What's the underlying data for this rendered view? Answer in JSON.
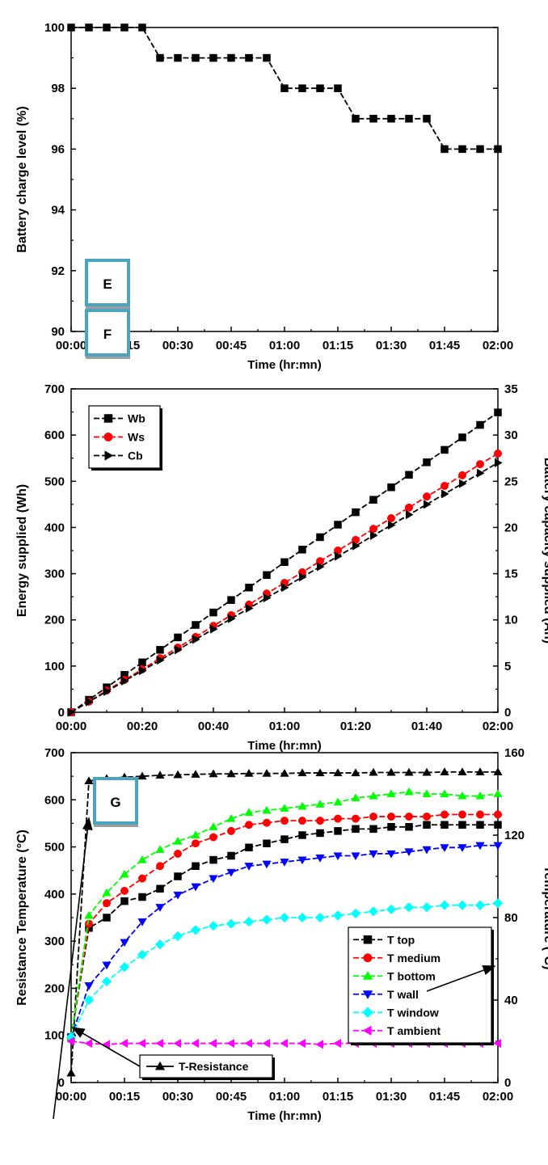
{
  "chart_data": [
    {
      "type": "line",
      "panel_label": "E",
      "xlabel": "Time (hr:mn)",
      "ylabel": "Battery charge level (%)",
      "xlim": [
        0,
        120
      ],
      "ylim": [
        90,
        100
      ],
      "xticks": [
        0,
        15,
        30,
        45,
        60,
        75,
        90,
        105,
        120
      ],
      "xtick_labels": [
        "00:00",
        "00:15",
        "00:30",
        "00:45",
        "01:00",
        "01:15",
        "01:30",
        "01:45",
        "02:00"
      ],
      "yticks": [
        90,
        92,
        94,
        96,
        98,
        100
      ],
      "series": [
        {
          "color": "#000000",
          "marker": "square",
          "x": [
            0,
            5,
            10,
            15,
            20,
            25,
            30,
            35,
            40,
            45,
            50,
            55,
            60,
            65,
            70,
            75,
            80,
            85,
            90,
            95,
            100,
            105,
            110,
            115,
            120
          ],
          "y": [
            100,
            100,
            100,
            100,
            100,
            99,
            99,
            99,
            99,
            99,
            99,
            99,
            98,
            98,
            98,
            98,
            97,
            97,
            97,
            97,
            97,
            96,
            96,
            96,
            96
          ]
        }
      ]
    },
    {
      "type": "line",
      "panel_label": "F",
      "xlabel": "Time (hr:mn)",
      "ylabel": "Energy supplied (Wh)",
      "y2label": "Battery capacity supplied (Ah)",
      "xlim": [
        0,
        120
      ],
      "ylim": [
        0,
        700
      ],
      "y2lim": [
        0,
        35
      ],
      "xticks": [
        0,
        20,
        40,
        60,
        80,
        100,
        120
      ],
      "xtick_labels": [
        "00:00",
        "00:20",
        "00:40",
        "01:00",
        "01:20",
        "01:40",
        "02:00"
      ],
      "yticks": [
        0,
        100,
        200,
        300,
        400,
        500,
        600,
        700
      ],
      "y2ticks": [
        0,
        5,
        10,
        15,
        20,
        25,
        30,
        35
      ],
      "legend_position": "top-left",
      "series": [
        {
          "name": "Wb",
          "color": "#000000",
          "marker": "square",
          "axis": "left",
          "x": [
            0,
            5,
            10,
            15,
            20,
            25,
            30,
            35,
            40,
            45,
            50,
            55,
            60,
            65,
            70,
            75,
            80,
            85,
            90,
            95,
            100,
            105,
            110,
            115,
            120
          ],
          "y": [
            0,
            27,
            54,
            81,
            108,
            135,
            162,
            189,
            216,
            243,
            270,
            297,
            325,
            352,
            379,
            406,
            433,
            460,
            487,
            514,
            541,
            568,
            595,
            622,
            649
          ]
        },
        {
          "name": "Ws",
          "color": "#ff0000",
          "marker": "circle",
          "axis": "left",
          "x": [
            0,
            5,
            10,
            15,
            20,
            25,
            30,
            35,
            40,
            45,
            50,
            55,
            60,
            65,
            70,
            75,
            80,
            85,
            90,
            95,
            100,
            105,
            110,
            115,
            120
          ],
          "y": [
            0,
            23,
            47,
            70,
            93,
            117,
            140,
            163,
            187,
            210,
            233,
            257,
            280,
            303,
            327,
            350,
            373,
            397,
            420,
            443,
            467,
            490,
            513,
            537,
            560
          ]
        },
        {
          "name": "Cb",
          "color": "#000000",
          "marker": "triangle-right",
          "axis": "right",
          "x": [
            0,
            5,
            10,
            15,
            20,
            25,
            30,
            35,
            40,
            45,
            50,
            55,
            60,
            65,
            70,
            75,
            80,
            85,
            90,
            95,
            100,
            105,
            110,
            115,
            120
          ],
          "y": [
            0,
            1.13,
            2.25,
            3.38,
            4.5,
            5.63,
            6.75,
            7.88,
            9.0,
            10.13,
            11.25,
            12.38,
            13.5,
            14.63,
            15.75,
            16.88,
            18.0,
            19.13,
            20.25,
            21.38,
            22.5,
            23.63,
            24.75,
            25.88,
            27.0
          ]
        }
      ]
    },
    {
      "type": "line",
      "panel_label": "G",
      "xlabel": "Time (hr:mn)",
      "ylabel": "Resistance Temperature (°C)",
      "y2label": "Temperature (°C)",
      "xlim": [
        0,
        120
      ],
      "ylim": [
        0,
        700
      ],
      "y2lim": [
        0,
        160
      ],
      "xticks": [
        0,
        15,
        30,
        45,
        60,
        75,
        90,
        105,
        120
      ],
      "xtick_labels": [
        "00:00",
        "00:15",
        "00:30",
        "00:45",
        "01:00",
        "01:15",
        "01:30",
        "01:45",
        "02:00"
      ],
      "yticks": [
        0,
        100,
        200,
        300,
        400,
        500,
        600,
        700
      ],
      "y2ticks": [
        0,
        40,
        80,
        120,
        160
      ],
      "legend_position": "lower-right",
      "series": [
        {
          "name": "T-Resistance",
          "color": "#000000",
          "marker": "triangle-up",
          "axis": "left",
          "x": [
            0,
            5,
            10,
            15,
            20,
            25,
            30,
            35,
            40,
            45,
            50,
            55,
            60,
            65,
            70,
            75,
            80,
            85,
            90,
            95,
            100,
            105,
            110,
            115,
            120
          ],
          "y": [
            20,
            640,
            645,
            648,
            650,
            652,
            653,
            654,
            655,
            655,
            656,
            656,
            656,
            657,
            657,
            657,
            657,
            658,
            658,
            658,
            658,
            659,
            659,
            659,
            659
          ]
        },
        {
          "name": "T top",
          "color": "#000000",
          "marker": "square",
          "axis": "right",
          "x": [
            0,
            5,
            10,
            15,
            20,
            25,
            30,
            35,
            40,
            45,
            50,
            55,
            60,
            65,
            70,
            75,
            80,
            85,
            90,
            95,
            100,
            105,
            110,
            115,
            120
          ],
          "y": [
            22,
            75,
            80,
            88,
            90,
            94,
            100,
            105,
            108,
            110,
            114,
            116,
            118,
            120,
            121,
            122,
            123,
            123,
            124,
            124,
            125,
            125,
            125,
            125,
            125
          ]
        },
        {
          "name": "T medium",
          "color": "#ff0000",
          "marker": "circle",
          "axis": "right",
          "x": [
            0,
            5,
            10,
            15,
            20,
            25,
            30,
            35,
            40,
            45,
            50,
            55,
            60,
            65,
            70,
            75,
            80,
            85,
            90,
            95,
            100,
            105,
            110,
            115,
            120
          ],
          "y": [
            22,
            77,
            87,
            93,
            99,
            105,
            111,
            116,
            119,
            122,
            125,
            126,
            127,
            127,
            127,
            128,
            128,
            129,
            129,
            129,
            129,
            130,
            130,
            130,
            130
          ]
        },
        {
          "name": "T bottom",
          "color": "#00ff00",
          "marker": "triangle-up",
          "axis": "right",
          "x": [
            0,
            5,
            10,
            15,
            20,
            25,
            30,
            35,
            40,
            45,
            50,
            55,
            60,
            65,
            70,
            75,
            80,
            85,
            90,
            95,
            100,
            105,
            110,
            115,
            120
          ],
          "y": [
            22,
            81,
            92,
            101,
            108,
            113,
            117,
            120,
            124,
            128,
            131,
            132,
            133,
            134,
            135,
            136,
            138,
            139,
            140,
            141,
            140,
            140,
            139,
            139,
            140
          ]
        },
        {
          "name": "T wall",
          "color": "#0000ff",
          "marker": "triangle-down",
          "axis": "right",
          "x": [
            0,
            5,
            10,
            15,
            20,
            25,
            30,
            35,
            40,
            45,
            50,
            55,
            60,
            65,
            70,
            75,
            80,
            85,
            90,
            95,
            100,
            105,
            110,
            115,
            120
          ],
          "y": [
            22,
            47,
            57,
            68,
            78,
            85,
            91,
            95,
            99,
            102,
            105,
            106,
            107,
            108,
            109,
            110,
            110,
            111,
            111,
            112,
            113,
            114,
            114,
            115,
            115
          ]
        },
        {
          "name": "T window",
          "color": "#00ffff",
          "marker": "diamond",
          "axis": "right",
          "x": [
            0,
            5,
            10,
            15,
            20,
            25,
            30,
            35,
            40,
            45,
            50,
            55,
            60,
            65,
            70,
            75,
            80,
            85,
            90,
            95,
            100,
            105,
            110,
            115,
            120
          ],
          "y": [
            22,
            40,
            49,
            56,
            62,
            67,
            71,
            74,
            76,
            77,
            78,
            79,
            80,
            80,
            80,
            81,
            82,
            83,
            84,
            85,
            85,
            86,
            86,
            86,
            87
          ]
        },
        {
          "name": "T ambient",
          "color": "#ff00ff",
          "marker": "triangle-left",
          "axis": "right",
          "x": [
            0,
            5,
            10,
            15,
            20,
            25,
            30,
            35,
            40,
            45,
            50,
            55,
            60,
            65,
            70,
            75,
            80,
            85,
            90,
            95,
            100,
            105,
            110,
            115,
            120
          ],
          "y": [
            20,
            19,
            18.5,
            19,
            19,
            19,
            19,
            19,
            19,
            19,
            19,
            19,
            19,
            19,
            18.5,
            19,
            19,
            19,
            19,
            19,
            19,
            19,
            19,
            19,
            19
          ]
        }
      ]
    }
  ]
}
